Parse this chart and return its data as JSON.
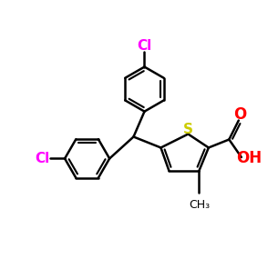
{
  "background_color": "#ffffff",
  "bond_color": "#000000",
  "S_color": "#cccc00",
  "O_color": "#ff0000",
  "Cl_color": "#ff00ff",
  "line_width": 1.8,
  "figsize": [
    3.05,
    3.07
  ],
  "dpi": 100,
  "xlim": [
    0,
    10
  ],
  "ylim": [
    0,
    10
  ]
}
